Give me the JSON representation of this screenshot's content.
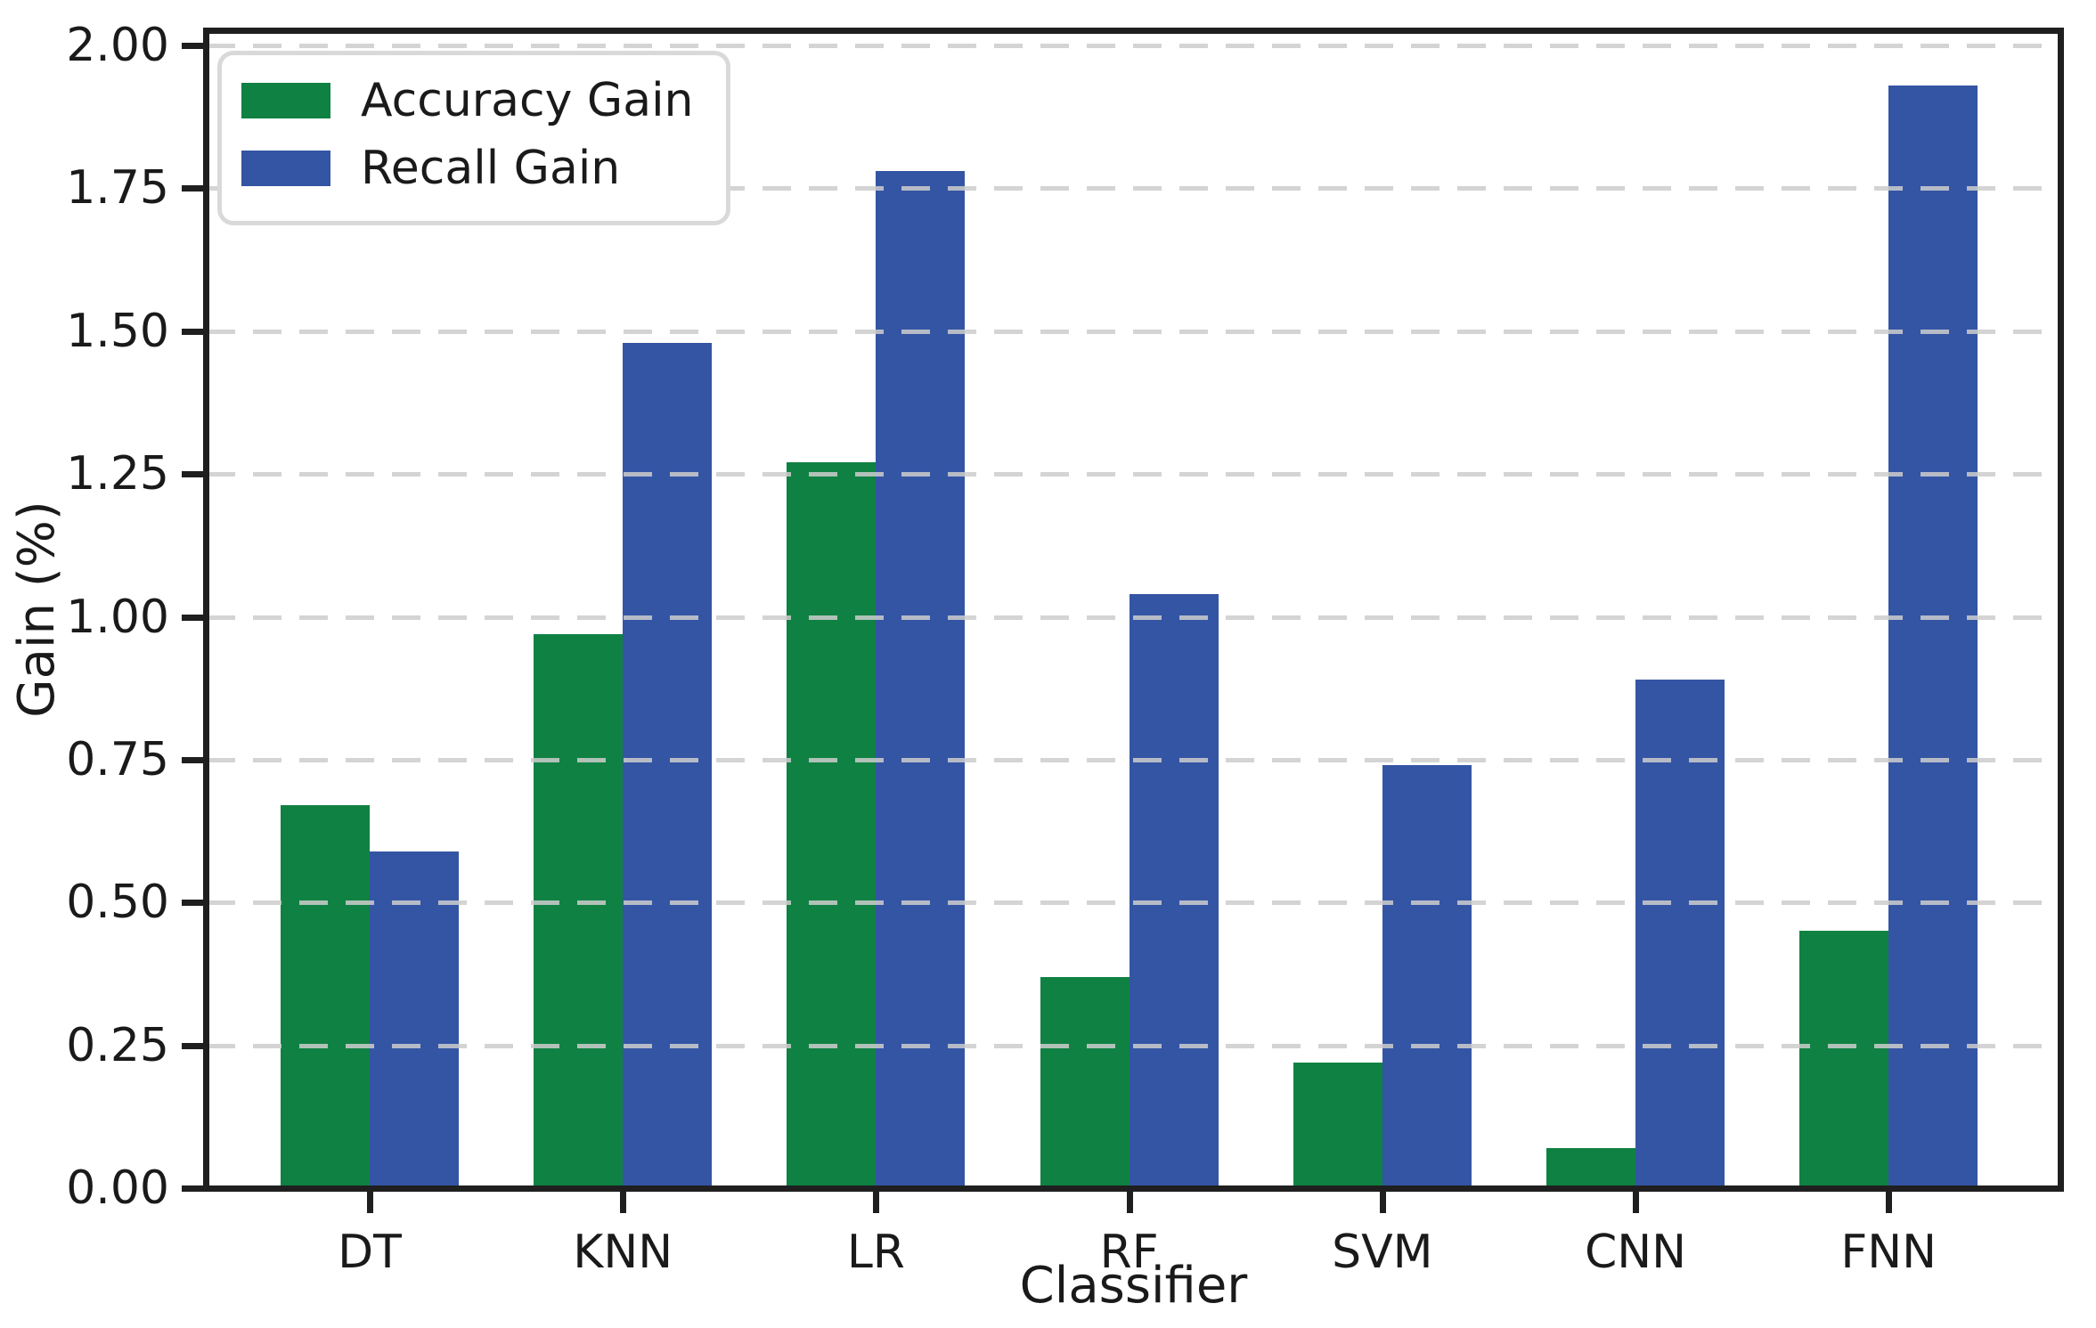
{
  "chart_data": {
    "type": "bar",
    "title": "",
    "xlabel": "Classifier",
    "ylabel": "Gain (%)",
    "categories": [
      "DT",
      "KNN",
      "LR",
      "RF",
      "SVM",
      "CNN",
      "FNN"
    ],
    "series": [
      {
        "name": "Accuracy Gain",
        "color": "#0f8143",
        "values": [
          0.67,
          0.97,
          1.27,
          0.37,
          0.22,
          0.07,
          0.45
        ]
      },
      {
        "name": "Recall Gain",
        "color": "#3455a4",
        "values": [
          0.59,
          1.48,
          1.78,
          1.04,
          0.74,
          0.89,
          1.93
        ]
      }
    ],
    "ylim": [
      0.0,
      2.02
    ],
    "yticks": [
      "0.00",
      "0.25",
      "0.50",
      "0.75",
      "1.00",
      "1.25",
      "1.50",
      "1.75",
      "2.00"
    ],
    "grid": {
      "axis": "y",
      "style": "dashed",
      "color": "#cdcdcd",
      "above_bars": true
    },
    "legend": {
      "position": "upper left",
      "entries": [
        "Accuracy Gain",
        "Recall Gain"
      ]
    },
    "spine_color": "#1f1f1f"
  }
}
